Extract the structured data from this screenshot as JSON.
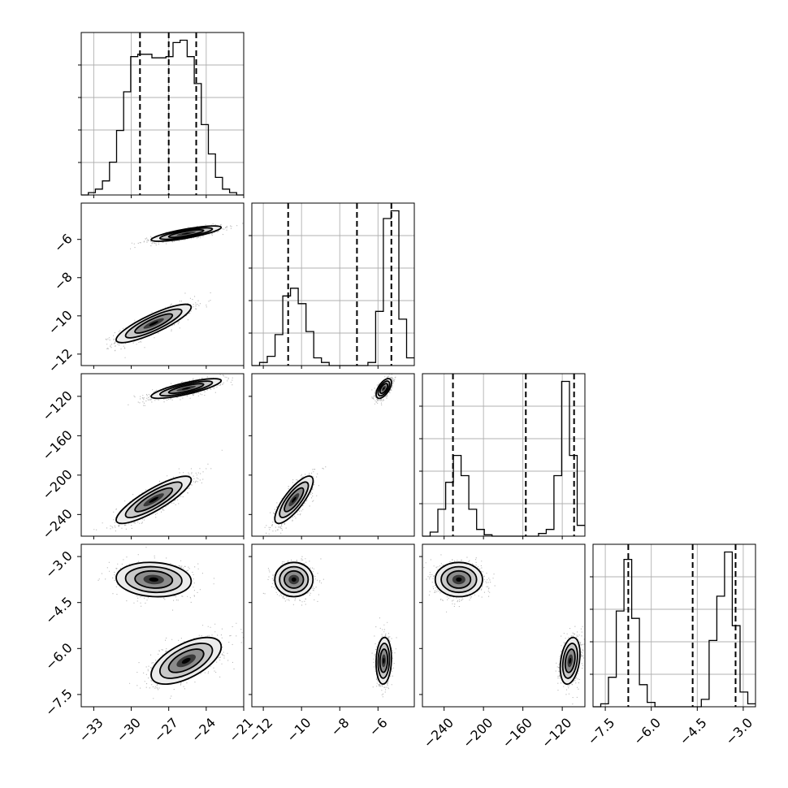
{
  "chart_data": {
    "type": "corner",
    "parameters": [
      {
        "ticks": [
          "−33",
          "−30",
          "−27",
          "−24",
          "−21"
        ],
        "tick_values": [
          -33,
          -30,
          -27,
          -24,
          -21
        ],
        "range": [
          -34.0,
          -21.0
        ]
      },
      {
        "ticks": [
          "−12",
          "−10",
          "−8",
          "−6"
        ],
        "tick_values": [
          -12,
          -10,
          -8,
          -6
        ],
        "range": [
          -12.6,
          -4.1
        ]
      },
      {
        "ticks": [
          "−240",
          "−200",
          "−160",
          "−120"
        ],
        "tick_values": [
          -240,
          -200,
          -160,
          -120
        ],
        "range": [
          -262,
          -97
        ]
      },
      {
        "ticks": [
          "−7.5",
          "−6.0",
          "−4.5",
          "−3.0"
        ],
        "tick_values": [
          -7.5,
          -6.0,
          -4.5,
          -3.0
        ],
        "range": [
          -7.9,
          -2.6
        ]
      }
    ],
    "quantiles": [
      [
        -29.3,
        -27.0,
        -24.8
      ],
      [
        -10.7,
        -7.1,
        -5.3
      ],
      [
        -231,
        -157,
        -108
      ],
      [
        -6.75,
        -4.65,
        -3.25
      ]
    ],
    "histograms": [
      {
        "bins": [
          -34.0,
          -21.0
        ],
        "counts": [
          0,
          2,
          5,
          12,
          28,
          55,
          88,
          118,
          120,
          120,
          117,
          117,
          118,
          130,
          132,
          118,
          95,
          60,
          35,
          15,
          5,
          2,
          0
        ]
      },
      {
        "bins": [
          -12.6,
          -4.1
        ],
        "counts": [
          0,
          2,
          6,
          20,
          45,
          50,
          40,
          22,
          5,
          2,
          0,
          0,
          0,
          0,
          0,
          2,
          35,
          95,
          100,
          30,
          5
        ]
      },
      {
        "bins": [
          -262,
          -97
        ],
        "counts": [
          0,
          3,
          20,
          40,
          60,
          45,
          20,
          5,
          1,
          0,
          0,
          0,
          0,
          0,
          0,
          2,
          5,
          45,
          115,
          60,
          8
        ]
      },
      {
        "bins": [
          -7.9,
          -2.6
        ],
        "counts": [
          0,
          2,
          20,
          65,
          100,
          60,
          15,
          3,
          0,
          0,
          0,
          0,
          0,
          0,
          5,
          45,
          75,
          105,
          55,
          10,
          2
        ]
      }
    ],
    "clusters": [
      {
        "mean": [
          -28.2,
          -10.4,
          -225,
          -3.75
        ],
        "sd": [
          1.5,
          0.5,
          12,
          0.28
        ],
        "corr": [
          [
            1,
            0.85,
            0.85,
            -0.1
          ],
          [
            0.85,
            1,
            0.8,
            0
          ],
          [
            0.85,
            0.8,
            1,
            0
          ],
          [
            -0.1,
            0,
            0,
            1
          ]
        ]
      },
      {
        "mean": [
          -25.6,
          -5.7,
          -112,
          -6.4
        ],
        "sd": [
          1.4,
          0.2,
          5,
          0.38
        ],
        "corr": [
          [
            1,
            0.8,
            0.8,
            0.6
          ],
          [
            0.8,
            1,
            0.6,
            0.1
          ],
          [
            0.8,
            0.6,
            1,
            0.3
          ],
          [
            0.6,
            0.1,
            0.3,
            1
          ]
        ]
      }
    ]
  }
}
